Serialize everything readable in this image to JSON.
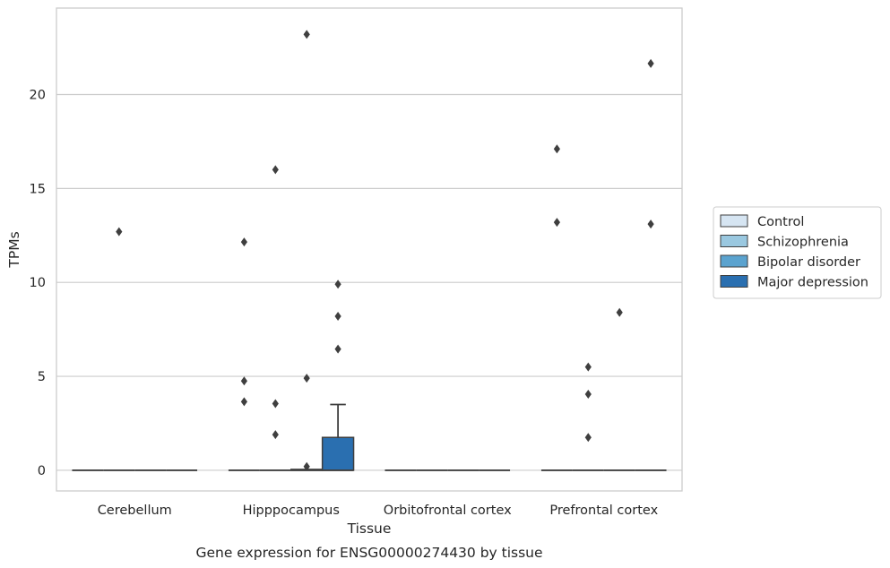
{
  "chart_data": {
    "type": "box",
    "xlabel": "Tissue",
    "ylabel": "TPMs",
    "caption": "Gene expression for ENSG00000274430 by tissue",
    "ylim": [
      -1.1,
      24.6
    ],
    "yticks": [
      0,
      5,
      10,
      15,
      20
    ],
    "grid": true,
    "legend_position": "right",
    "categories": [
      "Cerebellum",
      "Hipppocampus",
      "Orbitofrontal cortex",
      "Prefrontal cortex"
    ],
    "series": [
      {
        "name": "Control",
        "color": "#d6e5f2",
        "boxes": [
          {
            "category": "Cerebellum",
            "q1": 0,
            "median": 0,
            "q3": 0,
            "whisker_low": 0,
            "whisker_high": 0,
            "outliers": []
          },
          {
            "category": "Hipppocampus",
            "q1": 0,
            "median": 0,
            "q3": 0,
            "whisker_low": 0,
            "whisker_high": 0,
            "outliers": [
              12.15,
              4.75,
              3.65
            ]
          },
          {
            "category": "Orbitofrontal cortex",
            "q1": 0,
            "median": 0,
            "q3": 0,
            "whisker_low": 0,
            "whisker_high": 0,
            "outliers": []
          },
          {
            "category": "Prefrontal cortex",
            "q1": 0,
            "median": 0,
            "q3": 0,
            "whisker_low": 0,
            "whisker_high": 0,
            "outliers": [
              17.1,
              13.2
            ]
          }
        ]
      },
      {
        "name": "Schizophrenia",
        "color": "#9ac8e0",
        "boxes": [
          {
            "category": "Cerebellum",
            "q1": 0,
            "median": 0,
            "q3": 0,
            "whisker_low": 0,
            "whisker_high": 0,
            "outliers": [
              12.7
            ]
          },
          {
            "category": "Hipppocampus",
            "q1": 0,
            "median": 0,
            "q3": 0,
            "whisker_low": 0,
            "whisker_high": 0,
            "outliers": [
              16.0,
              3.55,
              1.9
            ]
          },
          {
            "category": "Orbitofrontal cortex",
            "q1": 0,
            "median": 0,
            "q3": 0,
            "whisker_low": 0,
            "whisker_high": 0,
            "outliers": []
          },
          {
            "category": "Prefrontal cortex",
            "q1": 0,
            "median": 0,
            "q3": 0,
            "whisker_low": 0,
            "whisker_high": 0,
            "outliers": [
              5.5,
              4.05,
              1.75
            ]
          }
        ]
      },
      {
        "name": "Bipolar disorder",
        "color": "#5ba3cf",
        "boxes": [
          {
            "category": "Cerebellum",
            "q1": 0,
            "median": 0,
            "q3": 0,
            "whisker_low": 0,
            "whisker_high": 0,
            "outliers": []
          },
          {
            "category": "Hipppocampus",
            "q1": 0,
            "median": 0,
            "q3": 0.05,
            "whisker_low": 0,
            "whisker_high": 0.05,
            "outliers": [
              23.2,
              4.9,
              0.2
            ]
          },
          {
            "category": "Orbitofrontal cortex",
            "q1": 0,
            "median": 0,
            "q3": 0,
            "whisker_low": 0,
            "whisker_high": 0,
            "outliers": []
          },
          {
            "category": "Prefrontal cortex",
            "q1": 0,
            "median": 0,
            "q3": 0,
            "whisker_low": 0,
            "whisker_high": 0,
            "outliers": [
              8.4
            ]
          }
        ]
      },
      {
        "name": "Major depression",
        "color": "#2a6fb0",
        "boxes": [
          {
            "category": "Cerebellum",
            "q1": 0,
            "median": 0,
            "q3": 0,
            "whisker_low": 0,
            "whisker_high": 0,
            "outliers": []
          },
          {
            "category": "Hipppocampus",
            "q1": 0,
            "median": 0,
            "q3": 1.75,
            "whisker_low": 0,
            "whisker_high": 3.5,
            "outliers": [
              9.9,
              8.2,
              6.45
            ]
          },
          {
            "category": "Orbitofrontal cortex",
            "q1": 0,
            "median": 0,
            "q3": 0,
            "whisker_low": 0,
            "whisker_high": 0,
            "outliers": []
          },
          {
            "category": "Prefrontal cortex",
            "q1": 0,
            "median": 0,
            "q3": 0,
            "whisker_low": 0,
            "whisker_high": 0,
            "outliers": [
              21.65,
              13.1
            ]
          }
        ]
      }
    ]
  }
}
